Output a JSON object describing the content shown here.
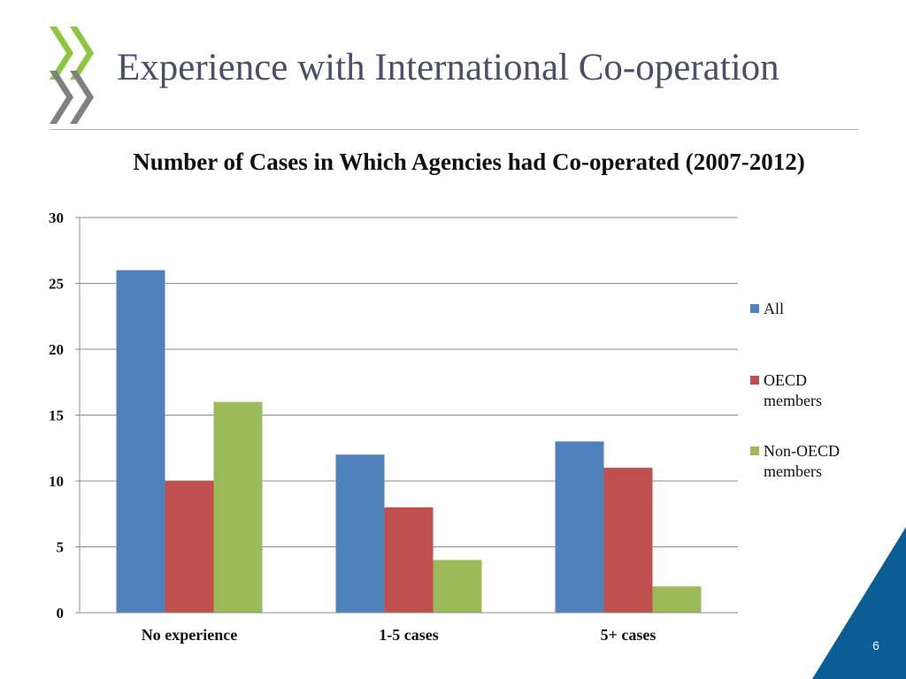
{
  "slide": {
    "title": "Experience with International Co-operation",
    "page_number": "6",
    "logo_colors": {
      "chevron_top": "#8dc63f",
      "chevron_bottom": "#808080"
    },
    "corner_color": "#0a5d95"
  },
  "chart_data": {
    "type": "bar",
    "title": "Number of Cases in Which Agencies had Co-operated (2007-2012)",
    "xlabel": "",
    "ylabel": "",
    "categories": [
      "No experience",
      "1-5 cases",
      "5+ cases"
    ],
    "series": [
      {
        "name": "All",
        "values": [
          26,
          12,
          13
        ],
        "color": "#4f81bd"
      },
      {
        "name": "OECD members",
        "values": [
          10,
          8,
          11
        ],
        "color": "#c0504d"
      },
      {
        "name": "Non-OECD members",
        "values": [
          16,
          4,
          2
        ],
        "color": "#9bbb59"
      }
    ],
    "ylim": [
      0,
      30
    ],
    "yticks": [
      0,
      5,
      10,
      15,
      20,
      25,
      30
    ],
    "grid": true,
    "legend": "right",
    "legend_labels": [
      [
        "All"
      ],
      [
        "OECD",
        "members"
      ],
      [
        "Non-OECD",
        "members"
      ]
    ]
  }
}
